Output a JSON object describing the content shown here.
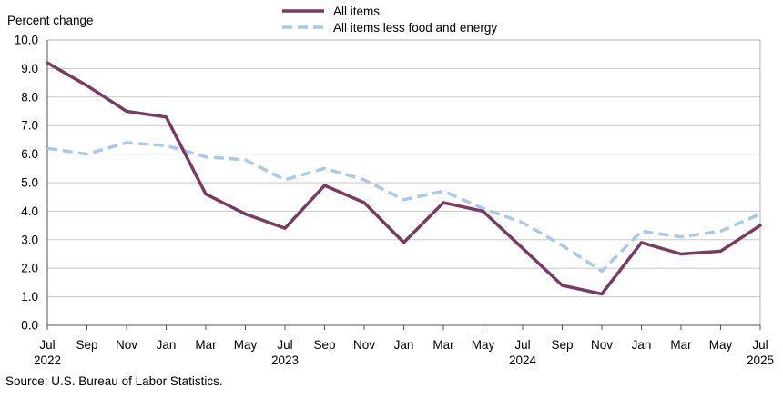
{
  "chart_data": {
    "type": "line",
    "ylabel": "Percent change",
    "ylim": [
      0,
      10
    ],
    "yticks": [
      "0.0",
      "1.0",
      "2.0",
      "3.0",
      "4.0",
      "5.0",
      "6.0",
      "7.0",
      "8.0",
      "9.0",
      "10.0"
    ],
    "x": [
      "2022-07",
      "2022-09",
      "2022-11",
      "2023-01",
      "2023-03",
      "2023-05",
      "2023-07",
      "2023-09",
      "2023-11",
      "2024-01",
      "2024-03",
      "2024-05",
      "2024-07",
      "2024-09",
      "2024-11",
      "2025-01",
      "2025-03",
      "2025-05",
      "2025-07"
    ],
    "xtick_labels": [
      "Jul",
      "Sep",
      "Nov",
      "Jan",
      "Mar",
      "May",
      "Jul",
      "Sep",
      "Nov",
      "Jan",
      "Mar",
      "May",
      "Jul",
      "Sep",
      "Nov",
      "Jan",
      "Mar",
      "May",
      "Jul"
    ],
    "year_labels": [
      {
        "index": 0,
        "label": "2022"
      },
      {
        "index": 6,
        "label": "2023"
      },
      {
        "index": 12,
        "label": "2024"
      },
      {
        "index": 18,
        "label": "2025"
      }
    ],
    "grid": true,
    "legend_position": "top-center",
    "series": [
      {
        "name": "All items",
        "color": "#7b3a63",
        "style": "solid",
        "values": [
          9.2,
          8.4,
          7.5,
          7.3,
          4.6,
          3.9,
          3.4,
          4.9,
          4.3,
          2.9,
          4.3,
          4.0,
          2.7,
          1.4,
          1.1,
          2.9,
          2.5,
          2.6,
          3.5
        ]
      },
      {
        "name": "All items less food and energy",
        "color": "#a9c8f0",
        "style": "dashed",
        "values": [
          6.2,
          6.0,
          6.4,
          6.3,
          5.9,
          5.8,
          5.1,
          5.5,
          5.1,
          4.4,
          4.7,
          4.1,
          3.6,
          2.8,
          1.9,
          3.3,
          3.1,
          3.3,
          3.9
        ]
      }
    ],
    "source": "Source: U.S. Bureau of Labor Statistics."
  }
}
